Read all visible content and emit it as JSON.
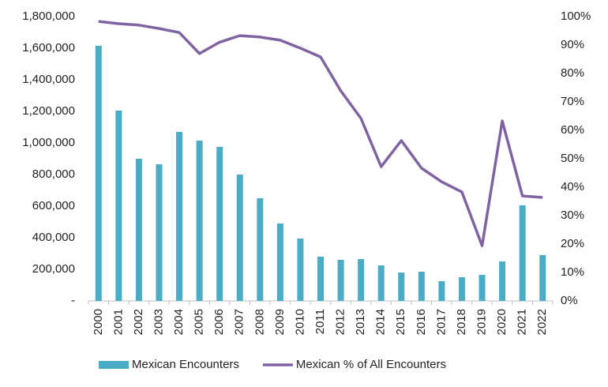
{
  "chart_data": {
    "type": "bar_line",
    "categories": [
      "2000",
      "2001",
      "2002",
      "2003",
      "2004",
      "2005",
      "2006",
      "2007",
      "2008",
      "2009",
      "2010",
      "2011",
      "2012",
      "2013",
      "2014",
      "2015",
      "2016",
      "2017",
      "2018",
      "2019",
      "2020",
      "2021",
      "2022"
    ],
    "series": [
      {
        "name": "Mexican Encounters",
        "type": "bar",
        "color": "#4bacc6",
        "values": [
          1615000,
          1205000,
          900000,
          865000,
          1070000,
          1015000,
          975000,
          800000,
          650000,
          490000,
          395000,
          280000,
          260000,
          265000,
          225000,
          180000,
          185000,
          125000,
          150000,
          165000,
          250000,
          605000,
          290000
        ]
      },
      {
        "name": "Mexican % of All Encounters",
        "type": "line",
        "axis": "y2",
        "color": "#8064a2",
        "values": [
          98.3,
          97.5,
          97,
          95.8,
          94.4,
          87,
          91,
          93.3,
          92.8,
          91.7,
          88.9,
          85.8,
          73.9,
          64.2,
          47.2,
          56.4,
          46.7,
          41.9,
          38.3,
          19.4,
          63.3,
          36.9,
          36.4
        ]
      }
    ],
    "ylim": [
      0,
      1800000
    ],
    "yticks": [
      {
        "value": 0,
        "label": "-"
      },
      {
        "value": 200000,
        "label": "200,000"
      },
      {
        "value": 400000,
        "label": "400,000"
      },
      {
        "value": 600000,
        "label": "600,000"
      },
      {
        "value": 800000,
        "label": "800,000"
      },
      {
        "value": 1000000,
        "label": "1,000,000"
      },
      {
        "value": 1200000,
        "label": "1,200,000"
      },
      {
        "value": 1400000,
        "label": "1,400,000"
      },
      {
        "value": 1600000,
        "label": "1,600,000"
      },
      {
        "value": 1800000,
        "label": "1,800,000"
      }
    ],
    "y2lim": [
      0,
      100
    ],
    "y2ticks": [
      {
        "value": 0,
        "label": "0%"
      },
      {
        "value": 10,
        "label": "10%"
      },
      {
        "value": 20,
        "label": "20%"
      },
      {
        "value": 30,
        "label": "30%"
      },
      {
        "value": 40,
        "label": "40%"
      },
      {
        "value": 50,
        "label": "50%"
      },
      {
        "value": 60,
        "label": "60%"
      },
      {
        "value": 70,
        "label": "70%"
      },
      {
        "value": 80,
        "label": "80%"
      },
      {
        "value": 90,
        "label": "90%"
      },
      {
        "value": 100,
        "label": "100%"
      }
    ],
    "grid": false,
    "legend": "bottom"
  }
}
